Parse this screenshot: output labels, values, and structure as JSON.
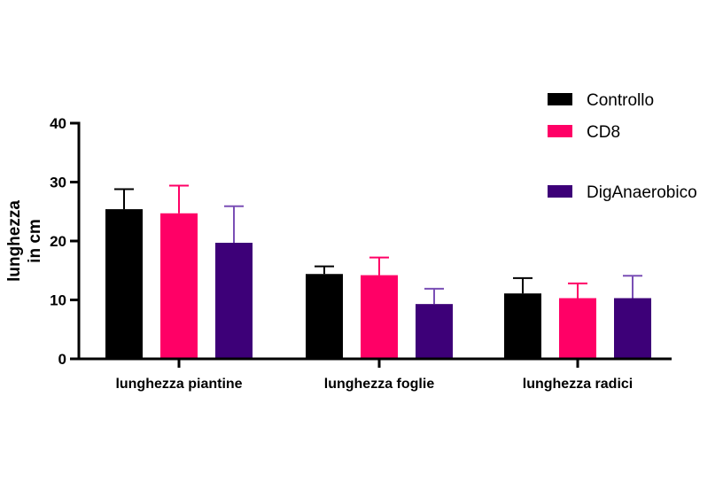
{
  "chart_data": {
    "type": "bar",
    "title": "",
    "xlabel": "",
    "ylabel": [
      "lunghezza",
      "in cm"
    ],
    "ylim": [
      0,
      40
    ],
    "yticks": [
      0,
      10,
      20,
      30,
      40
    ],
    "categories": [
      "lunghezza piantine",
      "lunghezza foglie",
      "lunghezza radici"
    ],
    "series": [
      {
        "name": "Controllo",
        "color": "#000000",
        "values": [
          25.4,
          14.4,
          11.1
        ],
        "errors": [
          3.4,
          1.3,
          2.6
        ]
      },
      {
        "name": "CD8",
        "color": "#FF0066",
        "values": [
          24.7,
          14.2,
          10.3
        ],
        "errors": [
          4.7,
          3.0,
          2.5
        ]
      },
      {
        "name": "DigAnaerobico",
        "color": "#3D0078",
        "values": [
          19.7,
          9.3,
          10.3
        ],
        "errors": [
          6.2,
          2.6,
          3.8
        ]
      }
    ],
    "error_bar_colors": [
      "#000000",
      "#FF0066",
      "#7A4FB5"
    ],
    "grid": false,
    "legend": "top-right"
  }
}
